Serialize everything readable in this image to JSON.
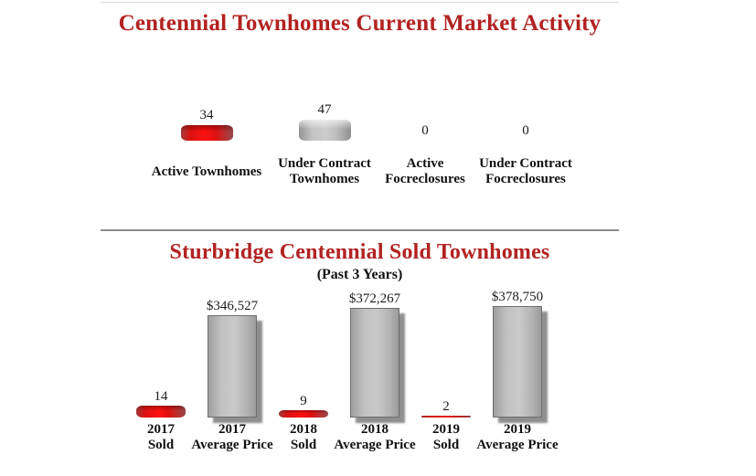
{
  "palette": {
    "title_red": "#b22222",
    "bar_red": "#ee1111",
    "bar_gray": "#c0c0c0",
    "shadow_gray": "#8f8f8f",
    "text_black": "#1b1b1b"
  },
  "chart_data": [
    {
      "type": "bar",
      "title": "Centennial Townhomes Current Market Activity",
      "categories": [
        "Active Townhomes",
        "Under Contract Townhomes",
        "Active Focreclosures",
        "Under Contract Focreclosures"
      ],
      "category_lines": [
        [
          "Active Townhomes"
        ],
        [
          "Under Contract",
          "Townhomes"
        ],
        [
          "Active",
          "Focreclosures"
        ],
        [
          "Under Contract",
          "Focreclosures"
        ]
      ],
      "values": [
        34,
        47,
        0,
        0
      ],
      "value_labels": [
        "34",
        "47",
        "0",
        "0"
      ],
      "bar_color_names": [
        "red",
        "gray",
        "red",
        "gray"
      ],
      "xlabel": "",
      "ylabel": "",
      "ylim": [
        0,
        50
      ],
      "grid": false,
      "legend": false
    },
    {
      "type": "bar",
      "title": "Sturbridge Centennial Sold Townhomes",
      "subtitle": "(Past 3 Years)",
      "categories": [
        "2017 Sold",
        "2017 Average Price",
        "2018 Sold",
        "2018 Average Price",
        "2019 Sold",
        "2019 Average Price"
      ],
      "category_lines": [
        [
          "2017",
          "Sold"
        ],
        [
          "2017",
          "Average Price"
        ],
        [
          "2018",
          "Sold"
        ],
        [
          "2018",
          "Average Price"
        ],
        [
          "2019",
          "Sold"
        ],
        [
          "2019",
          "Average Price"
        ]
      ],
      "values": [
        14,
        346527,
        9,
        372267,
        2,
        378750
      ],
      "value_labels": [
        "14",
        "$346,527",
        "9",
        "$372,267",
        "2",
        "$378,750"
      ],
      "bar_color_names": [
        "red",
        "gray",
        "red",
        "gray",
        "red",
        "gray"
      ],
      "series": [
        {
          "name": "Sold",
          "values": [
            14,
            9,
            2
          ]
        },
        {
          "name": "Average Price",
          "values": [
            346527,
            372267,
            378750
          ]
        }
      ],
      "xlabel": "",
      "ylabel": "",
      "grid": false,
      "legend": false
    }
  ]
}
